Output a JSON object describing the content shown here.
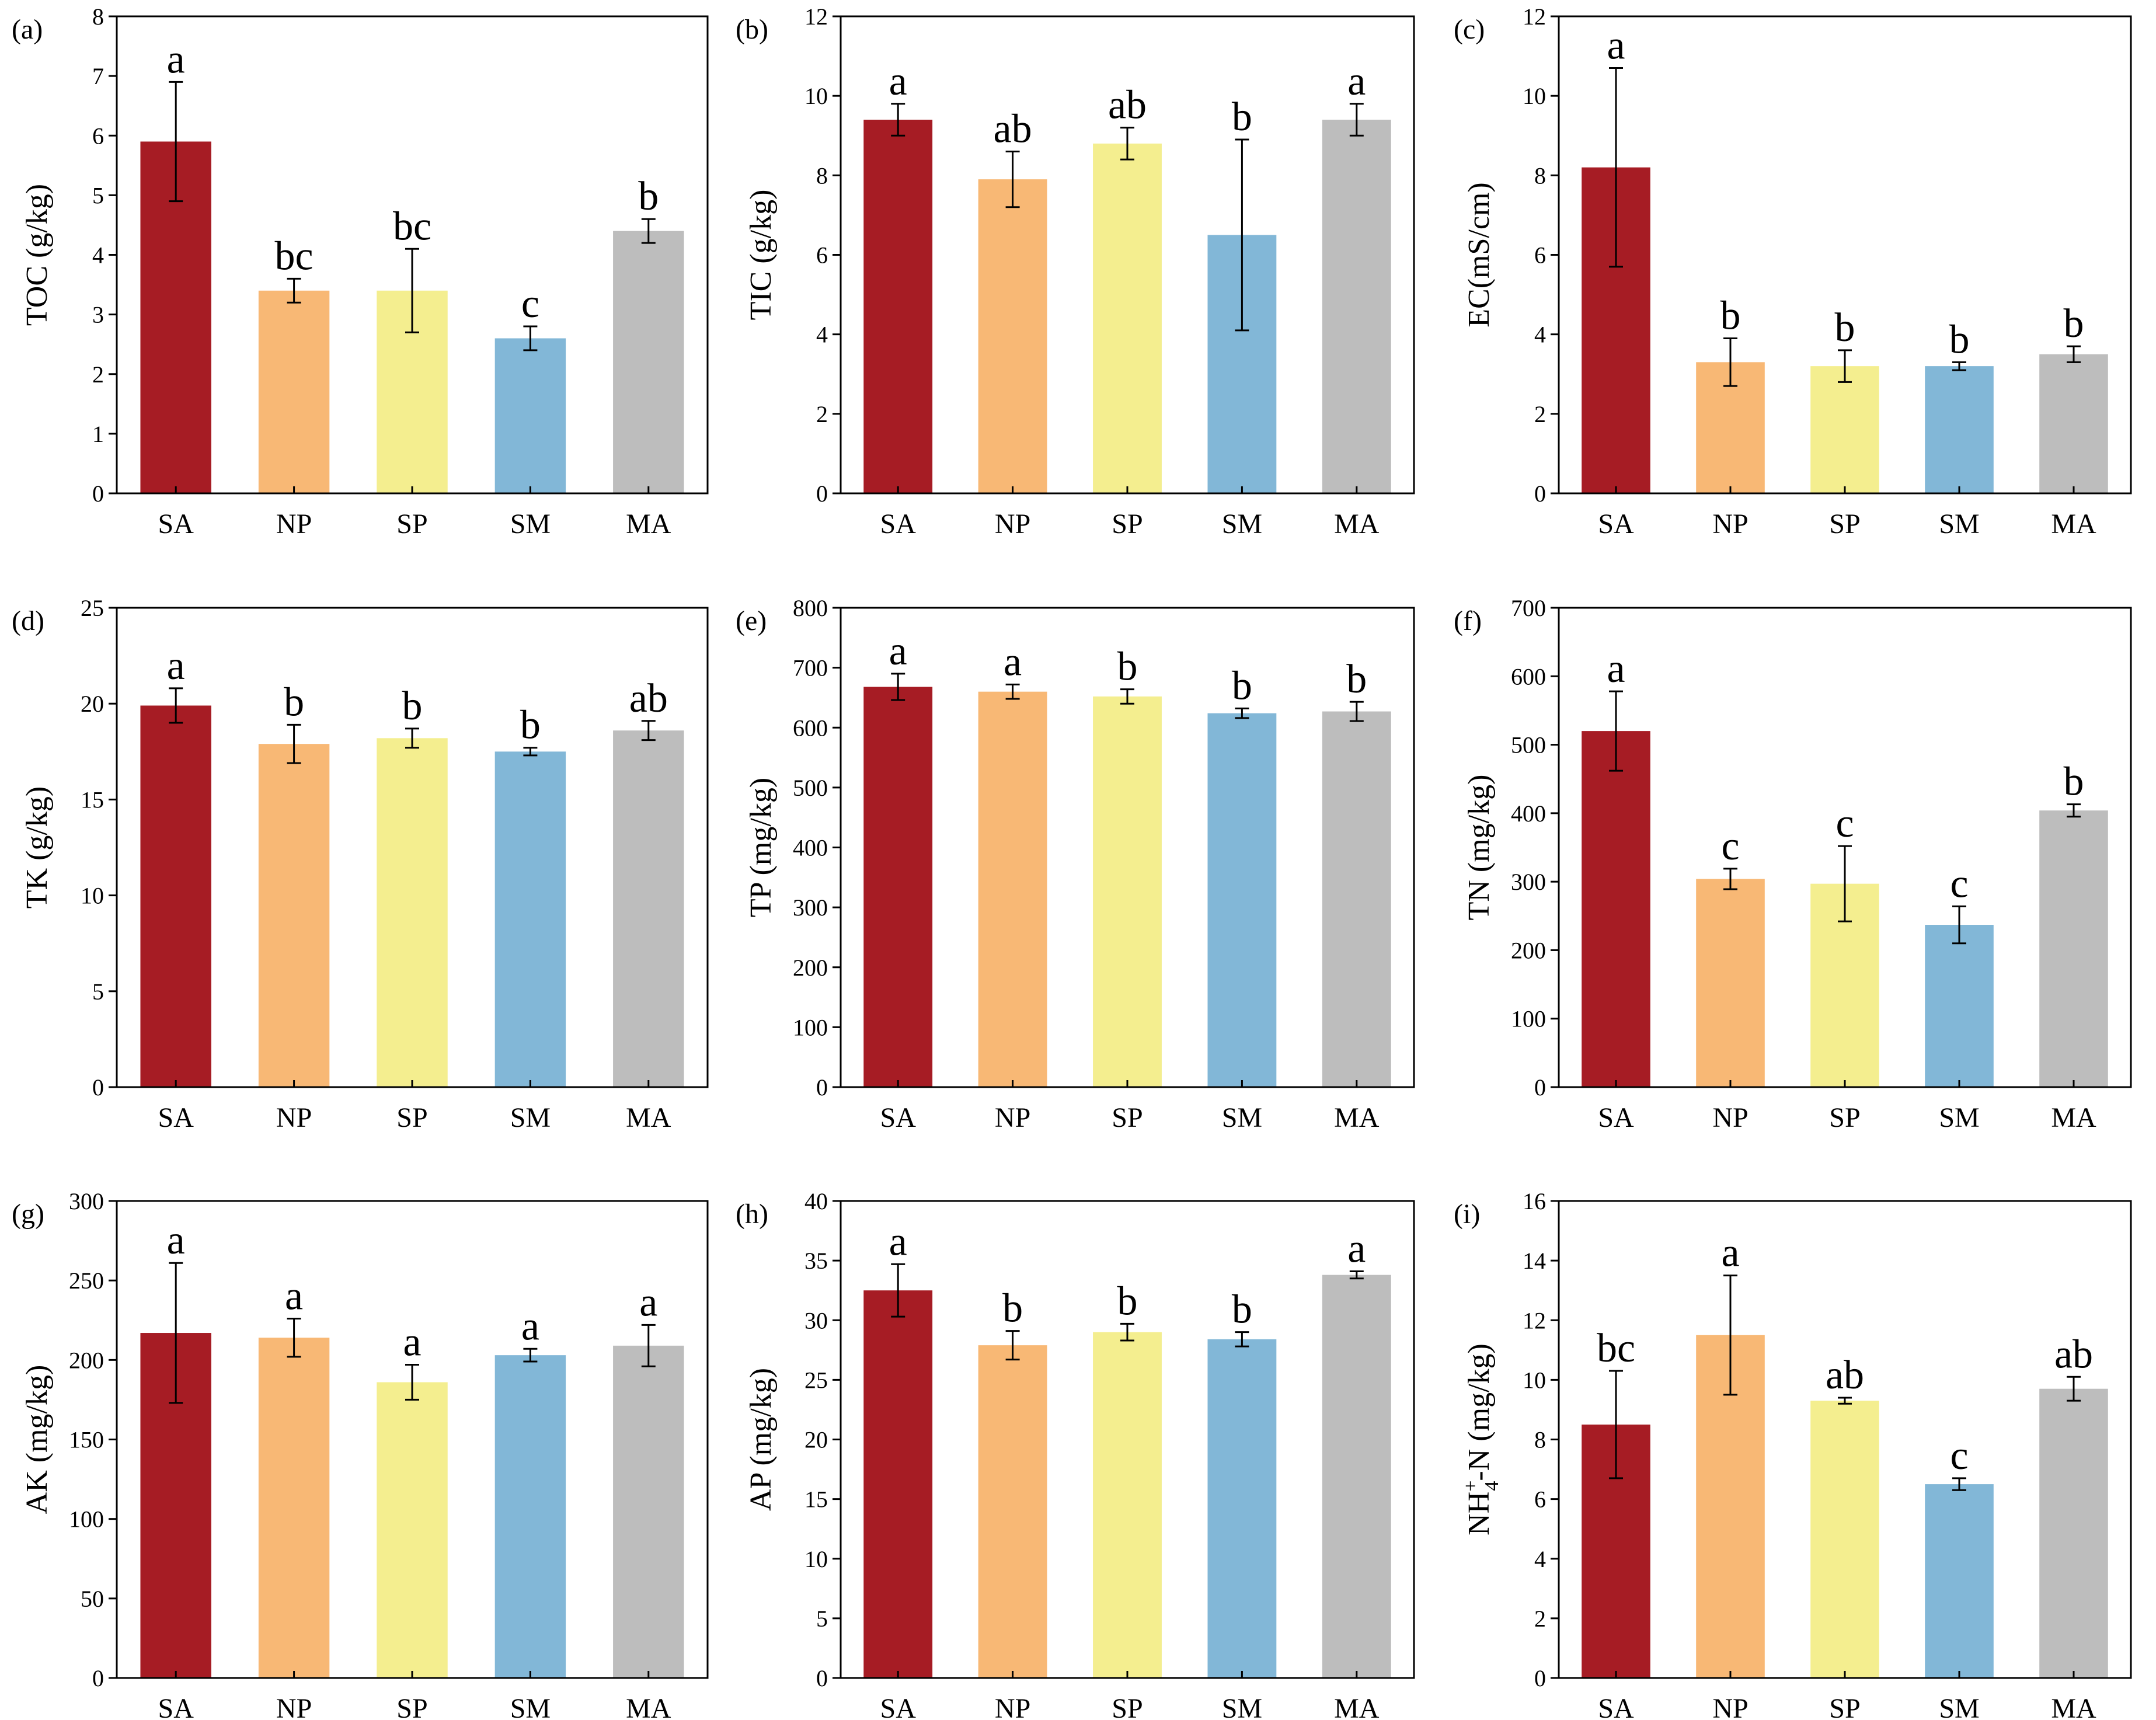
{
  "figure": {
    "colors": {
      "SA": "#a61c24",
      "NP": "#f8b875",
      "SP": "#f4ee8f",
      "SM": "#82b7d7",
      "MA": "#bdbdbd",
      "axis": "#000000"
    }
  },
  "chart_data": [
    {
      "panel": "(a)",
      "type": "bar",
      "ylabel": "TOC (g/kg)",
      "categories": [
        "SA",
        "NP",
        "SP",
        "SM",
        "MA"
      ],
      "values": [
        5.9,
        3.4,
        3.4,
        2.6,
        4.4
      ],
      "errors": [
        1.0,
        0.2,
        0.7,
        0.2,
        0.2
      ],
      "letters": [
        "a",
        "bc",
        "bc",
        "c",
        "b"
      ],
      "ylim": [
        0,
        8
      ],
      "yticks": [
        "0",
        "1",
        "2",
        "3",
        "4",
        "5",
        "6",
        "7",
        "8"
      ]
    },
    {
      "panel": "(b)",
      "type": "bar",
      "ylabel": "TIC (g/kg)",
      "categories": [
        "SA",
        "NP",
        "SP",
        "SM",
        "MA"
      ],
      "values": [
        9.4,
        7.9,
        8.8,
        6.5,
        9.4
      ],
      "errors": [
        0.4,
        0.7,
        0.4,
        2.4,
        0.4
      ],
      "letters": [
        "a",
        "ab",
        "ab",
        "b",
        "a"
      ],
      "ylim": [
        0,
        12
      ],
      "yticks": [
        "0",
        "2",
        "4",
        "6",
        "8",
        "10",
        "12"
      ]
    },
    {
      "panel": "(c)",
      "type": "bar",
      "ylabel": "EC(mS/cm)",
      "categories": [
        "SA",
        "NP",
        "SP",
        "SM",
        "MA"
      ],
      "values": [
        8.2,
        3.3,
        3.2,
        3.2,
        3.5
      ],
      "errors": [
        2.5,
        0.6,
        0.4,
        0.1,
        0.2
      ],
      "letters": [
        "a",
        "b",
        "b",
        "b",
        "b"
      ],
      "ylim": [
        0,
        12
      ],
      "yticks": [
        "0",
        "2",
        "4",
        "6",
        "8",
        "10",
        "12"
      ]
    },
    {
      "panel": "(d)",
      "type": "bar",
      "ylabel": "TK (g/kg)",
      "categories": [
        "SA",
        "NP",
        "SP",
        "SM",
        "MA"
      ],
      "values": [
        19.9,
        17.9,
        18.2,
        17.5,
        18.6
      ],
      "errors": [
        0.9,
        1.0,
        0.5,
        0.2,
        0.5
      ],
      "letters": [
        "a",
        "b",
        "b",
        "b",
        "ab"
      ],
      "ylim": [
        0,
        25
      ],
      "yticks": [
        "0",
        "5",
        "10",
        "15",
        "20",
        "25"
      ]
    },
    {
      "panel": "(e)",
      "type": "bar",
      "ylabel": "TP (mg/kg)",
      "categories": [
        "SA",
        "NP",
        "SP",
        "SM",
        "MA"
      ],
      "values": [
        668,
        660,
        652,
        624,
        627
      ],
      "errors": [
        22,
        12,
        12,
        8,
        16
      ],
      "letters": [
        "a",
        "a",
        "b",
        "b",
        "b"
      ],
      "ylim": [
        0,
        800
      ],
      "yticks": [
        "0",
        "100",
        "200",
        "300",
        "400",
        "500",
        "600",
        "700",
        "800"
      ]
    },
    {
      "panel": "(f)",
      "type": "bar",
      "ylabel": "TN (mg/kg)",
      "categories": [
        "SA",
        "NP",
        "SP",
        "SM",
        "MA"
      ],
      "values": [
        520,
        304,
        297,
        237,
        404
      ],
      "errors": [
        58,
        15,
        55,
        27,
        9
      ],
      "letters": [
        "a",
        "c",
        "c",
        "c",
        "b"
      ],
      "ylim": [
        0,
        700
      ],
      "yticks": [
        "0",
        "100",
        "200",
        "300",
        "400",
        "500",
        "600",
        "700"
      ]
    },
    {
      "panel": "(g)",
      "type": "bar",
      "ylabel": "AK (mg/kg)",
      "categories": [
        "SA",
        "NP",
        "SP",
        "SM",
        "MA"
      ],
      "values": [
        217,
        214,
        186,
        203,
        209
      ],
      "errors": [
        44,
        12,
        11,
        4,
        13
      ],
      "letters": [
        "a",
        "a",
        "a",
        "a",
        "a"
      ],
      "ylim": [
        0,
        300
      ],
      "yticks": [
        "0",
        "50",
        "100",
        "150",
        "200",
        "250",
        "300"
      ]
    },
    {
      "panel": "(h)",
      "type": "bar",
      "ylabel": "AP (mg/kg)",
      "categories": [
        "SA",
        "NP",
        "SP",
        "SM",
        "MA"
      ],
      "values": [
        32.5,
        27.9,
        29.0,
        28.4,
        33.8
      ],
      "errors": [
        2.2,
        1.2,
        0.7,
        0.6,
        0.3
      ],
      "letters": [
        "a",
        "b",
        "b",
        "b",
        "a"
      ],
      "ylim": [
        0,
        40
      ],
      "yticks": [
        "0",
        "5",
        "10",
        "15",
        "20",
        "25",
        "30",
        "35",
        "40"
      ]
    },
    {
      "panel": "(i)",
      "type": "bar",
      "ylabel": "NH4+-N (mg/kg)",
      "ylabel_parts": {
        "main": "NH",
        "sup": "+",
        "sub": "4",
        "rest": "-N (mg/kg)"
      },
      "categories": [
        "SA",
        "NP",
        "SP",
        "SM",
        "MA"
      ],
      "values": [
        8.5,
        11.5,
        9.3,
        6.5,
        9.7
      ],
      "errors": [
        1.8,
        2.0,
        0.1,
        0.2,
        0.4
      ],
      "letters": [
        "bc",
        "a",
        "ab",
        "c",
        "ab"
      ],
      "ylim": [
        0,
        16
      ],
      "yticks": [
        "0",
        "2",
        "4",
        "6",
        "8",
        "10",
        "12",
        "14",
        "16"
      ]
    }
  ]
}
